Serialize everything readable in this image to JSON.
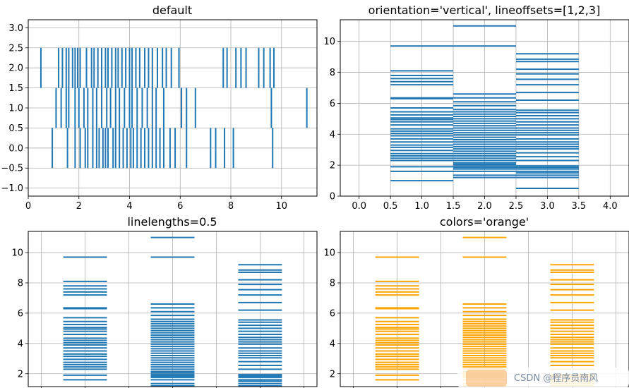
{
  "chart_data": [
    {
      "type": "eventplot",
      "title": "default",
      "orientation": "horizontal",
      "color": "#1f77b4",
      "lineoffsets": [
        0,
        1,
        2
      ],
      "linelength": 1,
      "xlim": [
        0,
        11.4
      ],
      "ylim": [
        -1.2,
        3.2
      ],
      "xticks": [
        0,
        2,
        4,
        6,
        8,
        10
      ],
      "yticks": [
        -1.0,
        -0.5,
        0.0,
        0.5,
        1.0,
        1.5,
        2.0,
        2.5,
        3.0
      ],
      "ytick_labels": [
        "−1.0",
        "−0.5",
        "0.0",
        "0.5",
        "1.0",
        "1.5",
        "2.0",
        "2.5",
        "3.0"
      ],
      "grid": true,
      "series": [
        {
          "values": [
            0.95,
            1.55,
            1.85,
            2.05,
            2.25,
            2.35,
            2.55,
            2.7,
            2.8,
            2.95,
            3.05,
            3.15,
            3.35,
            3.45,
            3.6,
            3.75,
            3.9,
            4.05,
            4.15,
            4.3,
            4.45,
            4.6,
            4.75,
            4.9,
            5.05,
            5.2,
            5.35,
            5.6,
            5.8,
            6.25,
            7.2,
            7.4,
            7.75,
            8.1,
            9.65
          ]
        },
        {
          "values": [
            1.1,
            1.3,
            1.5,
            1.6,
            1.85,
            2.0,
            2.2,
            2.35,
            2.55,
            2.7,
            2.9,
            3.1,
            3.25,
            3.45,
            3.6,
            3.8,
            4.0,
            4.1,
            4.3,
            4.5,
            4.7,
            4.9,
            5.05,
            5.35,
            6.05,
            6.25,
            6.6,
            9.6,
            11.0
          ]
        },
        {
          "values": [
            0.5,
            1.2,
            1.35,
            1.5,
            1.6,
            1.75,
            1.85,
            1.95,
            2.05,
            2.3,
            2.5,
            2.6,
            2.75,
            2.9,
            3.05,
            3.15,
            3.3,
            3.45,
            3.55,
            3.7,
            3.85,
            4.0,
            4.1,
            4.25,
            4.4,
            4.6,
            4.75,
            4.9,
            5.1,
            5.3,
            5.45,
            5.65,
            5.95,
            7.7,
            7.85,
            8.2,
            8.4,
            8.6,
            9.1,
            9.3,
            9.55,
            9.7
          ]
        }
      ]
    },
    {
      "type": "eventplot",
      "title": "orientation='vertical', lineoffsets=[1,2,3]",
      "orientation": "vertical",
      "color": "#1f77b4",
      "lineoffsets": [
        1,
        2,
        3
      ],
      "linelength": 1,
      "xlim": [
        -0.3,
        4.3
      ],
      "ylim": [
        0,
        11.4
      ],
      "xticks": [
        0.0,
        0.5,
        1.0,
        1.5,
        2.0,
        2.5,
        3.0,
        3.5,
        4.0
      ],
      "xtick_labels": [
        "0.0",
        "0.5",
        "1.0",
        "1.5",
        "2.0",
        "2.5",
        "3.0",
        "3.5",
        "4.0"
      ],
      "yticks": [
        0,
        2,
        4,
        6,
        8,
        10
      ],
      "grid": true,
      "series": [
        {
          "values": [
            1.0,
            1.6,
            1.9,
            2.3,
            2.45,
            2.6,
            2.75,
            2.95,
            3.15,
            3.3,
            3.5,
            3.7,
            3.9,
            4.05,
            4.2,
            4.35,
            4.6,
            4.8,
            4.95,
            5.05,
            5.25,
            5.45,
            5.7,
            6.3,
            6.35,
            7.2,
            7.4,
            7.6,
            7.8,
            8.1,
            9.7
          ]
        },
        {
          "values": [
            1.2,
            1.35,
            1.6,
            1.75,
            1.85,
            1.95,
            2.05,
            2.15,
            2.3,
            2.45,
            2.6,
            2.75,
            2.9,
            3.05,
            3.2,
            3.35,
            3.5,
            3.65,
            3.8,
            3.95,
            4.1,
            4.25,
            4.4,
            4.55,
            4.7,
            4.85,
            5.0,
            5.15,
            5.3,
            5.45,
            5.6,
            5.85,
            6.1,
            6.35,
            6.6,
            9.7,
            11.0
          ]
        },
        {
          "values": [
            0.5,
            1.2,
            1.35,
            1.5,
            1.6,
            1.75,
            1.85,
            1.95,
            2.3,
            2.55,
            2.8,
            3.05,
            3.2,
            3.35,
            3.5,
            3.7,
            3.95,
            4.1,
            4.25,
            4.4,
            4.6,
            4.8,
            5.0,
            5.2,
            5.4,
            5.55,
            6.2,
            6.7,
            7.2,
            7.55,
            7.9,
            8.2,
            8.7,
            8.85,
            9.2
          ]
        }
      ]
    },
    {
      "type": "eventplot",
      "title": "linelengths=0.5",
      "orientation": "vertical",
      "color": "#1f77b4",
      "lineoffsets": [
        1,
        2,
        3
      ],
      "linelength": 0.5,
      "xlim": [
        0.35,
        3.65
      ],
      "ylim": [
        1.15,
        11.4
      ],
      "yticks": [
        2,
        4,
        6,
        8,
        10
      ],
      "grid": true,
      "series_ref": "same event data as panel 2"
    },
    {
      "type": "eventplot",
      "title": "colors='orange'",
      "orientation": "vertical",
      "color": "#ffa500",
      "lineoffsets": [
        1,
        2,
        3
      ],
      "linelength": 0.5,
      "xlim": [
        0.35,
        3.65
      ],
      "ylim": [
        1.15,
        11.4
      ],
      "yticks": [
        2,
        4,
        6,
        8,
        10
      ],
      "grid": true,
      "series_ref": "same event data as panel 2"
    }
  ],
  "watermark": {
    "text": "CSDN @程序员南风",
    "color": "#7a8aa0"
  }
}
